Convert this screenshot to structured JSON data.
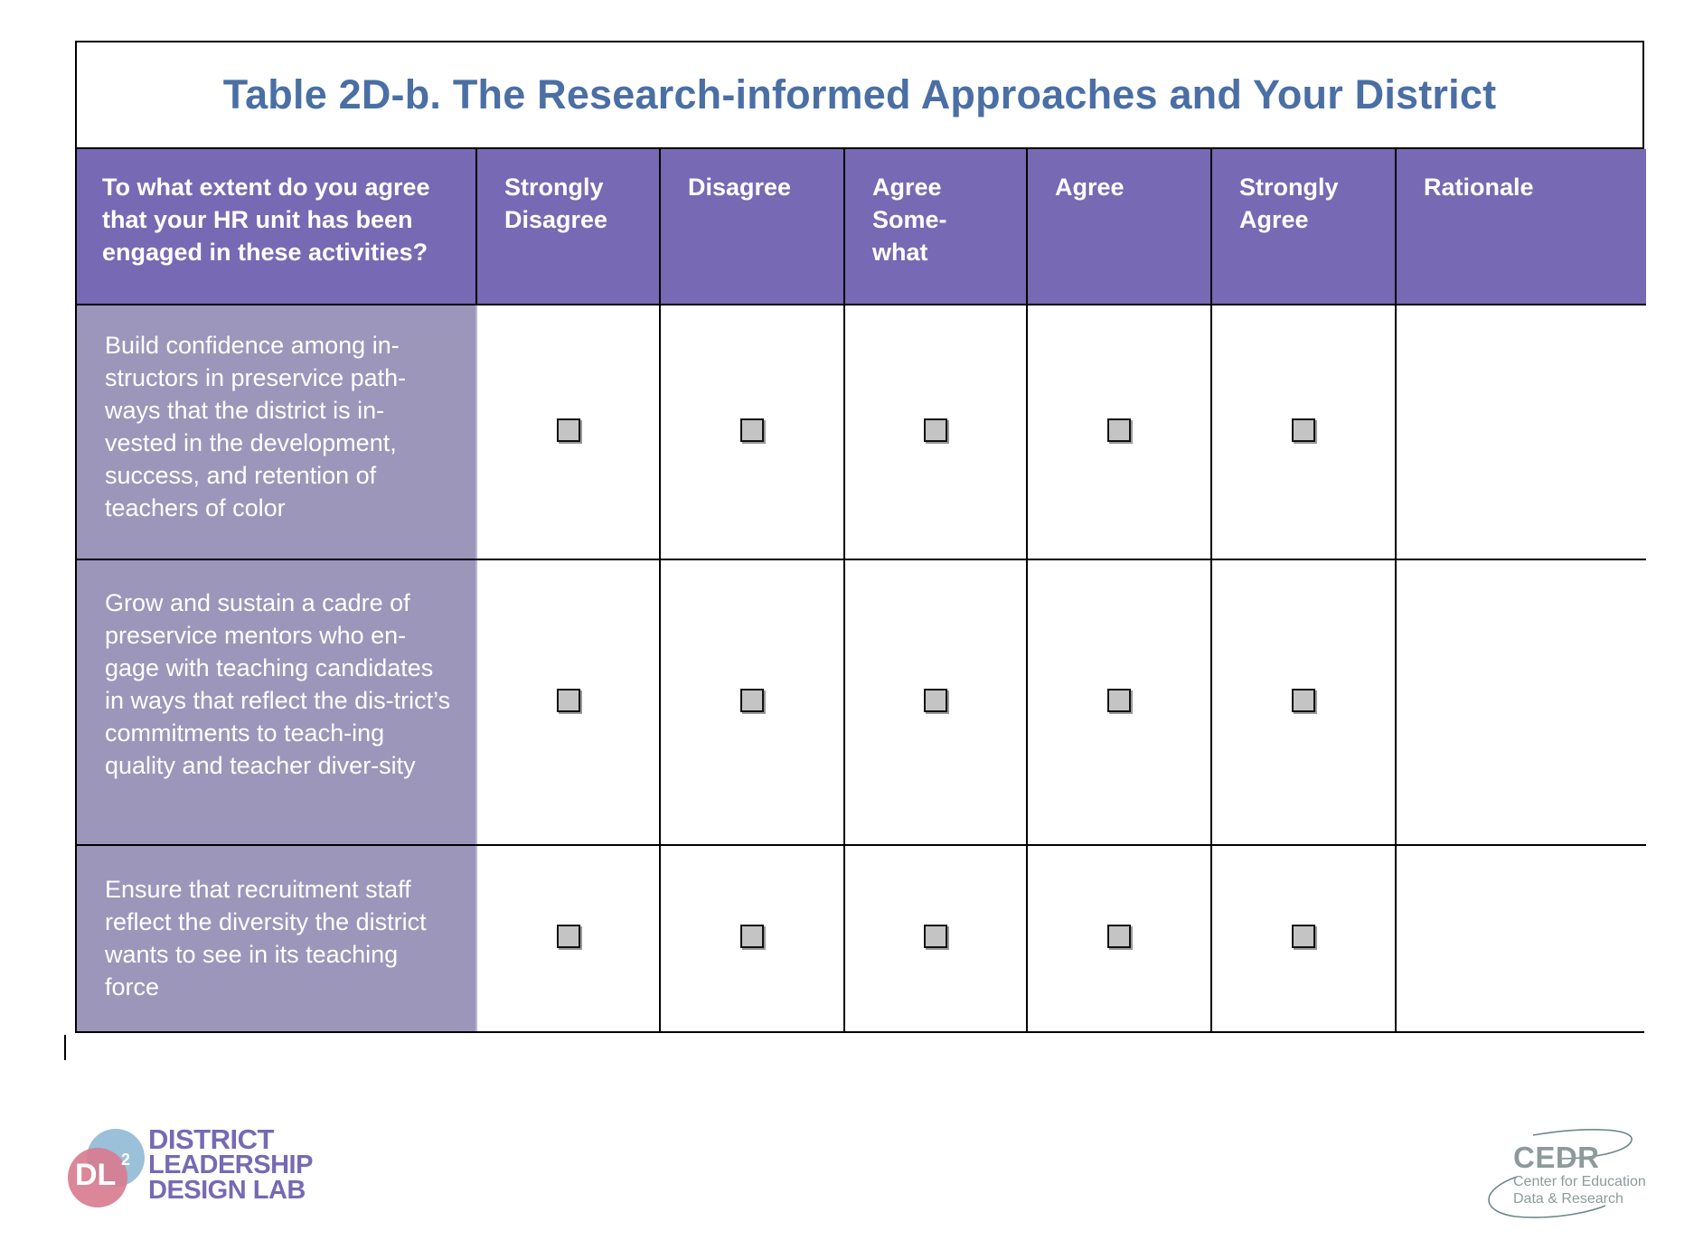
{
  "title": "Table 2D-b. The Research-informed Approaches and Your District",
  "header": {
    "question": "To what extent do you agree that your HR unit has been engaged in these activities?",
    "options": [
      "Strongly Disagree",
      "Disagree",
      "Agree Some-what",
      "Agree",
      "Strongly Agree"
    ],
    "rationale": "Rationale"
  },
  "rows": [
    {
      "activity": "Build confidence among in-structors in preservice path-ways that the district is in-vested in the development, success, and retention of teachers of color"
    },
    {
      "activity": "Grow and sustain a cadre of preservice mentors who en-gage with teaching candidates in ways that reflect the dis-trict’s commitments to teach-ing quality and teacher diver-sity"
    },
    {
      "activity": "Ensure that recruitment staff reflect the diversity the district wants to see in its teaching force"
    }
  ],
  "logos": {
    "dl2": {
      "mark": "DL",
      "superscript": "2",
      "line1": "DISTRICT",
      "line2": "LEADERSHIP",
      "line3": "DESIGN LAB"
    },
    "cedr": {
      "abbr": "CEDR",
      "line1": "Center for Education",
      "line2": "Data & Research"
    }
  },
  "colors": {
    "title": "#4A6FA5",
    "header_bg": "#7769B3",
    "activity_bg": "#9C96BB",
    "checkbox_fill": "#C4C4C4"
  }
}
